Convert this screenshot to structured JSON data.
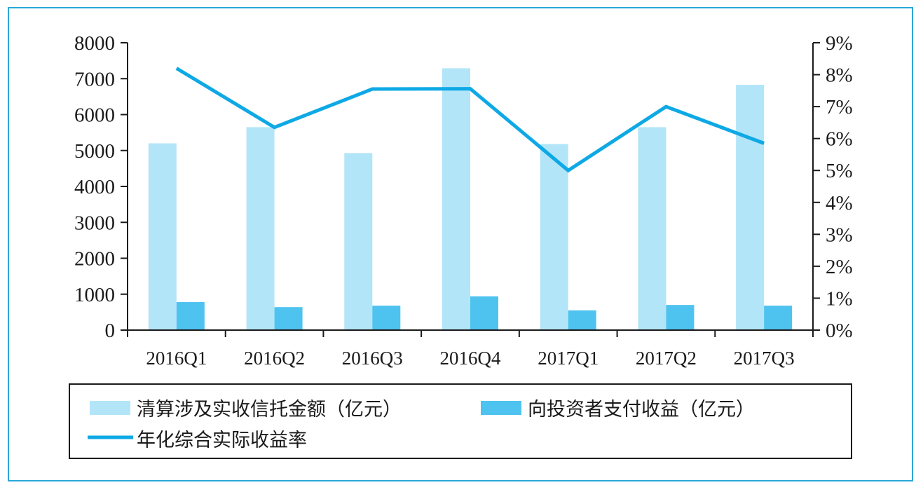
{
  "chart_data": {
    "type": "bar",
    "categories": [
      "2016Q1",
      "2016Q2",
      "2016Q3",
      "2016Q4",
      "2017Q1",
      "2017Q2",
      "2017Q3"
    ],
    "series": [
      {
        "name": "清算涉及实收信托金额（亿元）",
        "type": "bar",
        "axis": "left",
        "color": "#b3e5f8",
        "values": [
          5200,
          5650,
          4930,
          7290,
          5180,
          5650,
          6830
        ]
      },
      {
        "name": "向投资者支付收益（亿元）",
        "type": "bar",
        "axis": "left",
        "color": "#4ec3ef",
        "values": [
          780,
          640,
          680,
          940,
          550,
          700,
          680
        ]
      },
      {
        "name": "年化综合实际收益率",
        "type": "line",
        "axis": "right",
        "color": "#0ea9e5",
        "values": [
          8.2,
          6.35,
          7.55,
          7.56,
          5.0,
          7.0,
          5.85
        ]
      }
    ],
    "left_axis": {
      "ylim": [
        0,
        8000
      ],
      "ticks": [
        "0",
        "1000",
        "2000",
        "3000",
        "4000",
        "5000",
        "6000",
        "7000",
        "8000"
      ]
    },
    "right_axis": {
      "ylim": [
        0,
        9
      ],
      "ticks": [
        "0%",
        "1%",
        "2%",
        "3%",
        "4%",
        "5%",
        "6%",
        "7%",
        "8%",
        "9%"
      ]
    },
    "grid": false,
    "legend_position": "bottom",
    "frame_color": "#2aa8d8"
  }
}
